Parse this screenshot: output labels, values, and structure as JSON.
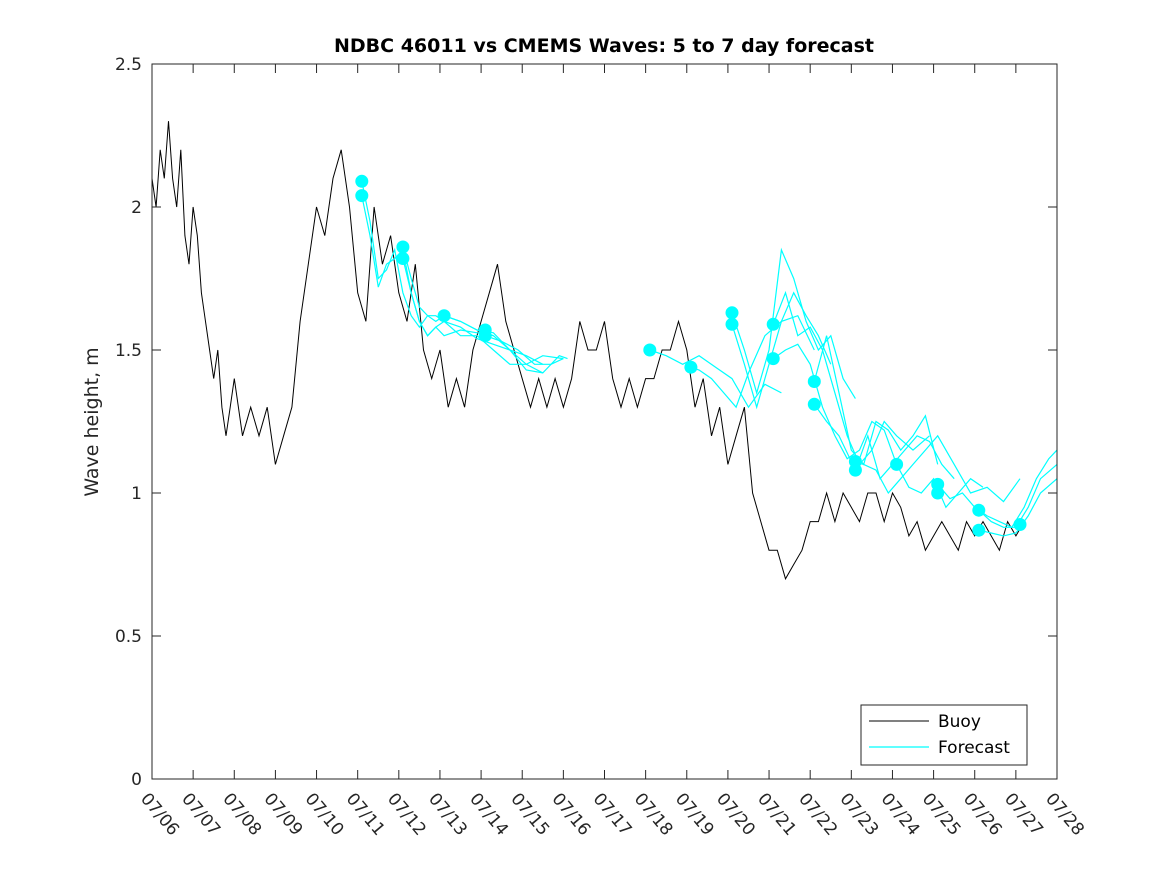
{
  "chart_data": {
    "type": "line",
    "title": "NDBC 46011 vs CMEMS Waves: 5 to 7 day forecast",
    "xlabel": "",
    "ylabel": "Wave height, m",
    "x_tick_labels": [
      "07/06",
      "07/07",
      "07/08",
      "07/09",
      "07/10",
      "07/11",
      "07/12",
      "07/13",
      "07/14",
      "07/15",
      "07/16",
      "07/17",
      "07/18",
      "07/19",
      "07/20",
      "07/21",
      "07/22",
      "07/23",
      "07/24",
      "07/25",
      "07/26",
      "07/27",
      "07/28"
    ],
    "xlim": [
      0,
      22
    ],
    "ylim": [
      0,
      2.5
    ],
    "y_ticks": [
      0,
      0.5,
      1,
      1.5,
      2,
      2.5
    ],
    "y_tick_labels": [
      "0",
      "0.5",
      "1",
      "1.5",
      "2",
      "2.5"
    ],
    "grid": false,
    "legend_position": "bottom-right",
    "colors": {
      "buoy": "#000000",
      "forecast": "#00ffff"
    },
    "series": [
      {
        "name": "Buoy",
        "x": [
          0.0,
          0.1,
          0.2,
          0.3,
          0.4,
          0.5,
          0.6,
          0.7,
          0.8,
          0.9,
          1.0,
          1.1,
          1.2,
          1.3,
          1.4,
          1.5,
          1.6,
          1.7,
          1.8,
          1.9,
          2.0,
          2.2,
          2.4,
          2.6,
          2.8,
          3.0,
          3.2,
          3.4,
          3.6,
          3.8,
          4.0,
          4.2,
          4.4,
          4.6,
          4.8,
          5.0,
          5.2,
          5.4,
          5.6,
          5.8,
          6.0,
          6.2,
          6.4,
          6.6,
          6.8,
          7.0,
          7.2,
          7.4,
          7.6,
          7.8,
          8.0,
          8.2,
          8.4,
          8.6,
          8.8,
          9.0,
          9.2,
          9.4,
          9.6,
          9.8,
          10.0,
          10.2,
          10.4,
          10.6,
          10.8,
          11.0,
          11.2,
          11.4,
          11.6,
          11.8,
          12.0,
          12.2,
          12.4,
          12.6,
          12.8,
          13.0,
          13.2,
          13.4,
          13.6,
          13.8,
          14.0,
          14.2,
          14.4,
          14.6,
          14.8,
          15.0,
          15.2,
          15.4,
          15.6,
          15.8,
          16.0,
          16.2,
          16.4,
          16.6,
          16.8,
          17.0,
          17.2,
          17.4,
          17.6,
          17.8,
          18.0,
          18.2,
          18.4,
          18.6,
          18.8,
          19.0,
          19.2,
          19.4,
          19.6,
          19.8,
          20.0,
          20.2,
          20.4,
          20.6,
          20.8,
          21.0,
          21.2
        ],
        "y": [
          2.1,
          2.0,
          2.2,
          2.1,
          2.3,
          2.1,
          2.0,
          2.2,
          1.9,
          1.8,
          2.0,
          1.9,
          1.7,
          1.6,
          1.5,
          1.4,
          1.5,
          1.3,
          1.2,
          1.3,
          1.4,
          1.2,
          1.3,
          1.2,
          1.3,
          1.1,
          1.2,
          1.3,
          1.6,
          1.8,
          2.0,
          1.9,
          2.1,
          2.2,
          2.0,
          1.7,
          1.6,
          2.0,
          1.8,
          1.9,
          1.7,
          1.6,
          1.8,
          1.5,
          1.4,
          1.5,
          1.3,
          1.4,
          1.3,
          1.5,
          1.6,
          1.7,
          1.8,
          1.6,
          1.5,
          1.4,
          1.3,
          1.4,
          1.3,
          1.4,
          1.3,
          1.4,
          1.6,
          1.5,
          1.5,
          1.6,
          1.4,
          1.3,
          1.4,
          1.3,
          1.4,
          1.4,
          1.5,
          1.5,
          1.6,
          1.5,
          1.3,
          1.4,
          1.2,
          1.3,
          1.1,
          1.2,
          1.3,
          1.0,
          0.9,
          0.8,
          0.8,
          0.7,
          0.75,
          0.8,
          0.9,
          0.9,
          1.0,
          0.9,
          1.0,
          0.95,
          0.9,
          1.0,
          1.0,
          0.9,
          1.0,
          0.95,
          0.85,
          0.9,
          0.8,
          0.85,
          0.9,
          0.85,
          0.8,
          0.9,
          0.85,
          0.9,
          0.85,
          0.8,
          0.9,
          0.85,
          0.9
        ]
      },
      {
        "name": "Forecast",
        "runs": [
          {
            "x": [
              5.1,
              5.3,
              5.5,
              5.7,
              5.9,
              6.1,
              6.3,
              6.5,
              6.7,
              6.9,
              7.1,
              7.5,
              7.9,
              8.3,
              8.7,
              9.1,
              9.5,
              10.0
            ],
            "y": [
              2.09,
              1.95,
              1.75,
              1.78,
              1.85,
              1.7,
              1.62,
              1.58,
              1.62,
              1.62,
              1.6,
              1.55,
              1.55,
              1.5,
              1.45,
              1.45,
              1.48,
              1.47
            ]
          },
          {
            "x": [
              5.1,
              5.3,
              5.5,
              5.7,
              5.9,
              6.1,
              6.3,
              6.5,
              6.7,
              6.9,
              7.1,
              7.5,
              7.9,
              8.3,
              8.7,
              9.1,
              9.5
            ],
            "y": [
              2.04,
              1.9,
              1.72,
              1.8,
              1.82,
              1.85,
              1.7,
              1.6,
              1.55,
              1.58,
              1.6,
              1.58,
              1.54,
              1.52,
              1.5,
              1.43,
              1.42
            ]
          },
          {
            "x": [
              6.1,
              6.3,
              6.5,
              6.7,
              6.9,
              7.1,
              7.5,
              7.9,
              8.3,
              8.7,
              9.1,
              9.5
            ],
            "y": [
              1.86,
              1.75,
              1.65,
              1.62,
              1.6,
              1.62,
              1.6,
              1.57,
              1.55,
              1.5,
              1.48,
              1.45
            ]
          },
          {
            "x": [
              6.1,
              6.3,
              6.5,
              6.7,
              6.9,
              7.1,
              7.5,
              7.9,
              8.3
            ],
            "y": [
              1.82,
              1.7,
              1.6,
              1.55,
              1.58,
              1.55,
              1.57,
              1.56,
              1.55
            ]
          },
          {
            "x": [
              7.1,
              7.5,
              7.9,
              8.3,
              8.7,
              9.1,
              9.5,
              9.9,
              10.1
            ],
            "y": [
              1.62,
              1.6,
              1.57,
              1.56,
              1.5,
              1.45,
              1.42,
              1.48,
              1.47
            ]
          },
          {
            "x": [
              8.1,
              8.5,
              8.9,
              9.3,
              9.7,
              10.0
            ],
            "y": [
              1.55,
              1.53,
              1.5,
              1.45,
              1.45,
              1.47
            ]
          },
          {
            "x": [
              12.1,
              12.5,
              12.9,
              13.3,
              13.7,
              14.1,
              14.5,
              14.9,
              15.3
            ],
            "y": [
              1.5,
              1.48,
              1.45,
              1.48,
              1.44,
              1.4,
              1.3,
              1.38,
              1.35
            ]
          },
          {
            "x": [
              13.1,
              13.3,
              13.6,
              13.9,
              14.2,
              14.5,
              14.9,
              15.3,
              15.7,
              16.1
            ],
            "y": [
              1.44,
              1.43,
              1.4,
              1.35,
              1.3,
              1.42,
              1.55,
              1.6,
              1.62,
              1.5
            ]
          },
          {
            "x": [
              14.1,
              14.4,
              14.7,
              15.0,
              15.3,
              15.6,
              15.9,
              16.2,
              16.5,
              16.8,
              17.1
            ],
            "y": [
              1.63,
              1.5,
              1.35,
              1.5,
              1.85,
              1.75,
              1.6,
              1.5,
              1.55,
              1.4,
              1.33
            ]
          },
          {
            "x": [
              14.1,
              14.4,
              14.7,
              15.0,
              15.3,
              15.6,
              15.9,
              16.2,
              16.5
            ],
            "y": [
              1.59,
              1.45,
              1.3,
              1.45,
              1.6,
              1.7,
              1.62,
              1.55,
              1.45
            ]
          },
          {
            "x": [
              15.1,
              15.4,
              15.7,
              16.0,
              16.3,
              16.6,
              16.9,
              17.2,
              17.5,
              17.8,
              18.1,
              18.5,
              18.9
            ],
            "y": [
              1.59,
              1.7,
              1.55,
              1.58,
              1.5,
              1.35,
              1.2,
              1.1,
              1.15,
              1.25,
              1.2,
              1.15,
              1.2
            ]
          },
          {
            "x": [
              15.1,
              15.4,
              15.7,
              16.0,
              16.3,
              16.6,
              16.9,
              17.2,
              17.5,
              17.8,
              18.1
            ],
            "y": [
              1.47,
              1.5,
              1.52,
              1.45,
              1.3,
              1.2,
              1.12,
              1.15,
              1.25,
              1.22,
              1.1
            ]
          },
          {
            "x": [
              16.1,
              16.4,
              16.7,
              17.0,
              17.3,
              17.6,
              17.9,
              18.2,
              18.5,
              18.8,
              19.1
            ],
            "y": [
              1.39,
              1.55,
              1.35,
              1.15,
              1.1,
              1.25,
              1.22,
              1.15,
              1.2,
              1.27,
              1.1
            ]
          },
          {
            "x": [
              16.1,
              16.4,
              16.7,
              17.0,
              17.3,
              17.6,
              17.9,
              18.2,
              18.5,
              18.8,
              19.1,
              19.5,
              19.9,
              20.3,
              20.7,
              21.1
            ],
            "y": [
              1.31,
              1.25,
              1.2,
              1.11,
              1.1,
              1.08,
              1.0,
              1.05,
              1.1,
              1.15,
              1.2,
              1.1,
              1.0,
              1.02,
              0.97,
              1.05
            ]
          },
          {
            "x": [
              17.1,
              17.4,
              17.7,
              18.0,
              18.3,
              18.6,
              18.9,
              19.2,
              19.5
            ],
            "y": [
              1.08,
              1.2,
              1.05,
              1.1,
              1.15,
              1.2,
              1.18,
              1.1,
              1.05
            ]
          },
          {
            "x": [
              18.1,
              18.4,
              18.7,
              19.0,
              19.3,
              19.6,
              19.9,
              20.2
            ],
            "y": [
              1.1,
              1.02,
              1.0,
              1.05,
              0.95,
              1.0,
              1.05,
              1.02
            ]
          },
          {
            "x": [
              19.1,
              19.4,
              19.7,
              20.0,
              20.3,
              20.6,
              20.9,
              21.2,
              21.5,
              21.8,
              22.0
            ],
            "y": [
              1.03,
              0.98,
              1.0,
              0.95,
              0.92,
              0.9,
              0.88,
              0.95,
              1.05,
              1.12,
              1.15
            ]
          },
          {
            "x": [
              20.1,
              20.4,
              20.7,
              21.0,
              21.3,
              21.6,
              22.0
            ],
            "y": [
              0.94,
              0.9,
              0.88,
              0.88,
              0.95,
              1.05,
              1.1
            ]
          },
          {
            "x": [
              20.1,
              20.4,
              20.7,
              21.0,
              21.3,
              21.6,
              22.0
            ],
            "y": [
              0.87,
              0.86,
              0.85,
              0.86,
              0.92,
              1.0,
              1.05
            ]
          }
        ],
        "dots": {
          "x": [
            5.1,
            5.1,
            6.1,
            6.1,
            7.1,
            8.1,
            8.1,
            12.1,
            13.1,
            14.1,
            14.1,
            15.1,
            15.1,
            16.1,
            16.1,
            17.1,
            17.1,
            18.1,
            19.1,
            19.1,
            20.1,
            20.1,
            21.1
          ],
          "y": [
            2.09,
            2.04,
            1.86,
            1.82,
            1.62,
            1.57,
            1.55,
            1.5,
            1.44,
            1.63,
            1.59,
            1.59,
            1.47,
            1.39,
            1.31,
            1.11,
            1.08,
            1.1,
            1.03,
            1.0,
            0.94,
            0.87,
            0.89
          ]
        }
      }
    ]
  }
}
